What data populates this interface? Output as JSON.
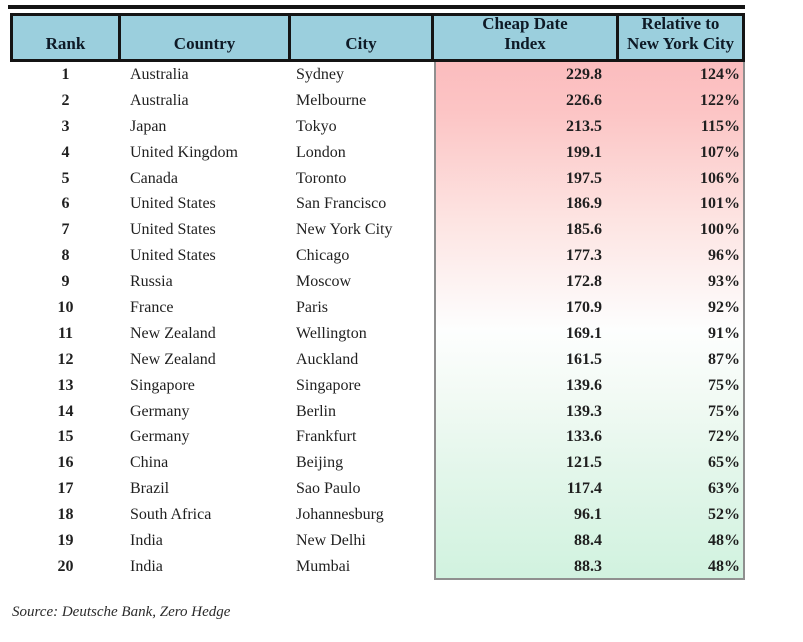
{
  "chart_data": {
    "type": "table",
    "columns": [
      "Rank",
      "Country",
      "City",
      "Cheap Date\nIndex",
      "Relative to\nNew York City"
    ],
    "rows": [
      [
        "1",
        "Australia",
        "Sydney",
        "229.8",
        "124%"
      ],
      [
        "2",
        "Australia",
        "Melbourne",
        "226.6",
        "122%"
      ],
      [
        "3",
        "Japan",
        "Tokyo",
        "213.5",
        "115%"
      ],
      [
        "4",
        "United Kingdom",
        "London",
        "199.1",
        "107%"
      ],
      [
        "5",
        "Canada",
        "Toronto",
        "197.5",
        "106%"
      ],
      [
        "6",
        "United States",
        "San Francisco",
        "186.9",
        "101%"
      ],
      [
        "7",
        "United States",
        "New York City",
        "185.6",
        "100%"
      ],
      [
        "8",
        "United States",
        "Chicago",
        "177.3",
        "96%"
      ],
      [
        "9",
        "Russia",
        "Moscow",
        "172.8",
        "93%"
      ],
      [
        "10",
        "France",
        "Paris",
        "170.9",
        "92%"
      ],
      [
        "11",
        "New Zealand",
        "Wellington",
        "169.1",
        "91%"
      ],
      [
        "12",
        "New Zealand",
        "Auckland",
        "161.5",
        "87%"
      ],
      [
        "13",
        "Singapore",
        "Singapore",
        "139.6",
        "75%"
      ],
      [
        "14",
        "Germany",
        "Berlin",
        "139.3",
        "75%"
      ],
      [
        "15",
        "Germany",
        "Frankfurt",
        "133.6",
        "72%"
      ],
      [
        "16",
        "China",
        "Beijing",
        "121.5",
        "65%"
      ],
      [
        "17",
        "Brazil",
        "Sao Paulo",
        "117.4",
        "63%"
      ],
      [
        "18",
        "South Africa",
        "Johannesburg",
        "96.1",
        "52%"
      ],
      [
        "19",
        "India",
        "New Delhi",
        "88.4",
        "48%"
      ],
      [
        "20",
        "India",
        "Mumbai",
        "88.3",
        "48%"
      ]
    ],
    "heatmap": {
      "applies_to_columns": [
        "Cheap Date Index",
        "Relative to New York City"
      ],
      "high_color": "#fbbcbe",
      "mid_color": "#fdfefe",
      "low_color": "#d1f2df"
    },
    "layout": {
      "header_bg": "#9bcfdd",
      "header_border": "#141414",
      "panel_border": "#8f8f8f",
      "grid": "off",
      "value_alignment": "right"
    }
  },
  "source": "Source: Deutsche Bank, Zero Hedge"
}
